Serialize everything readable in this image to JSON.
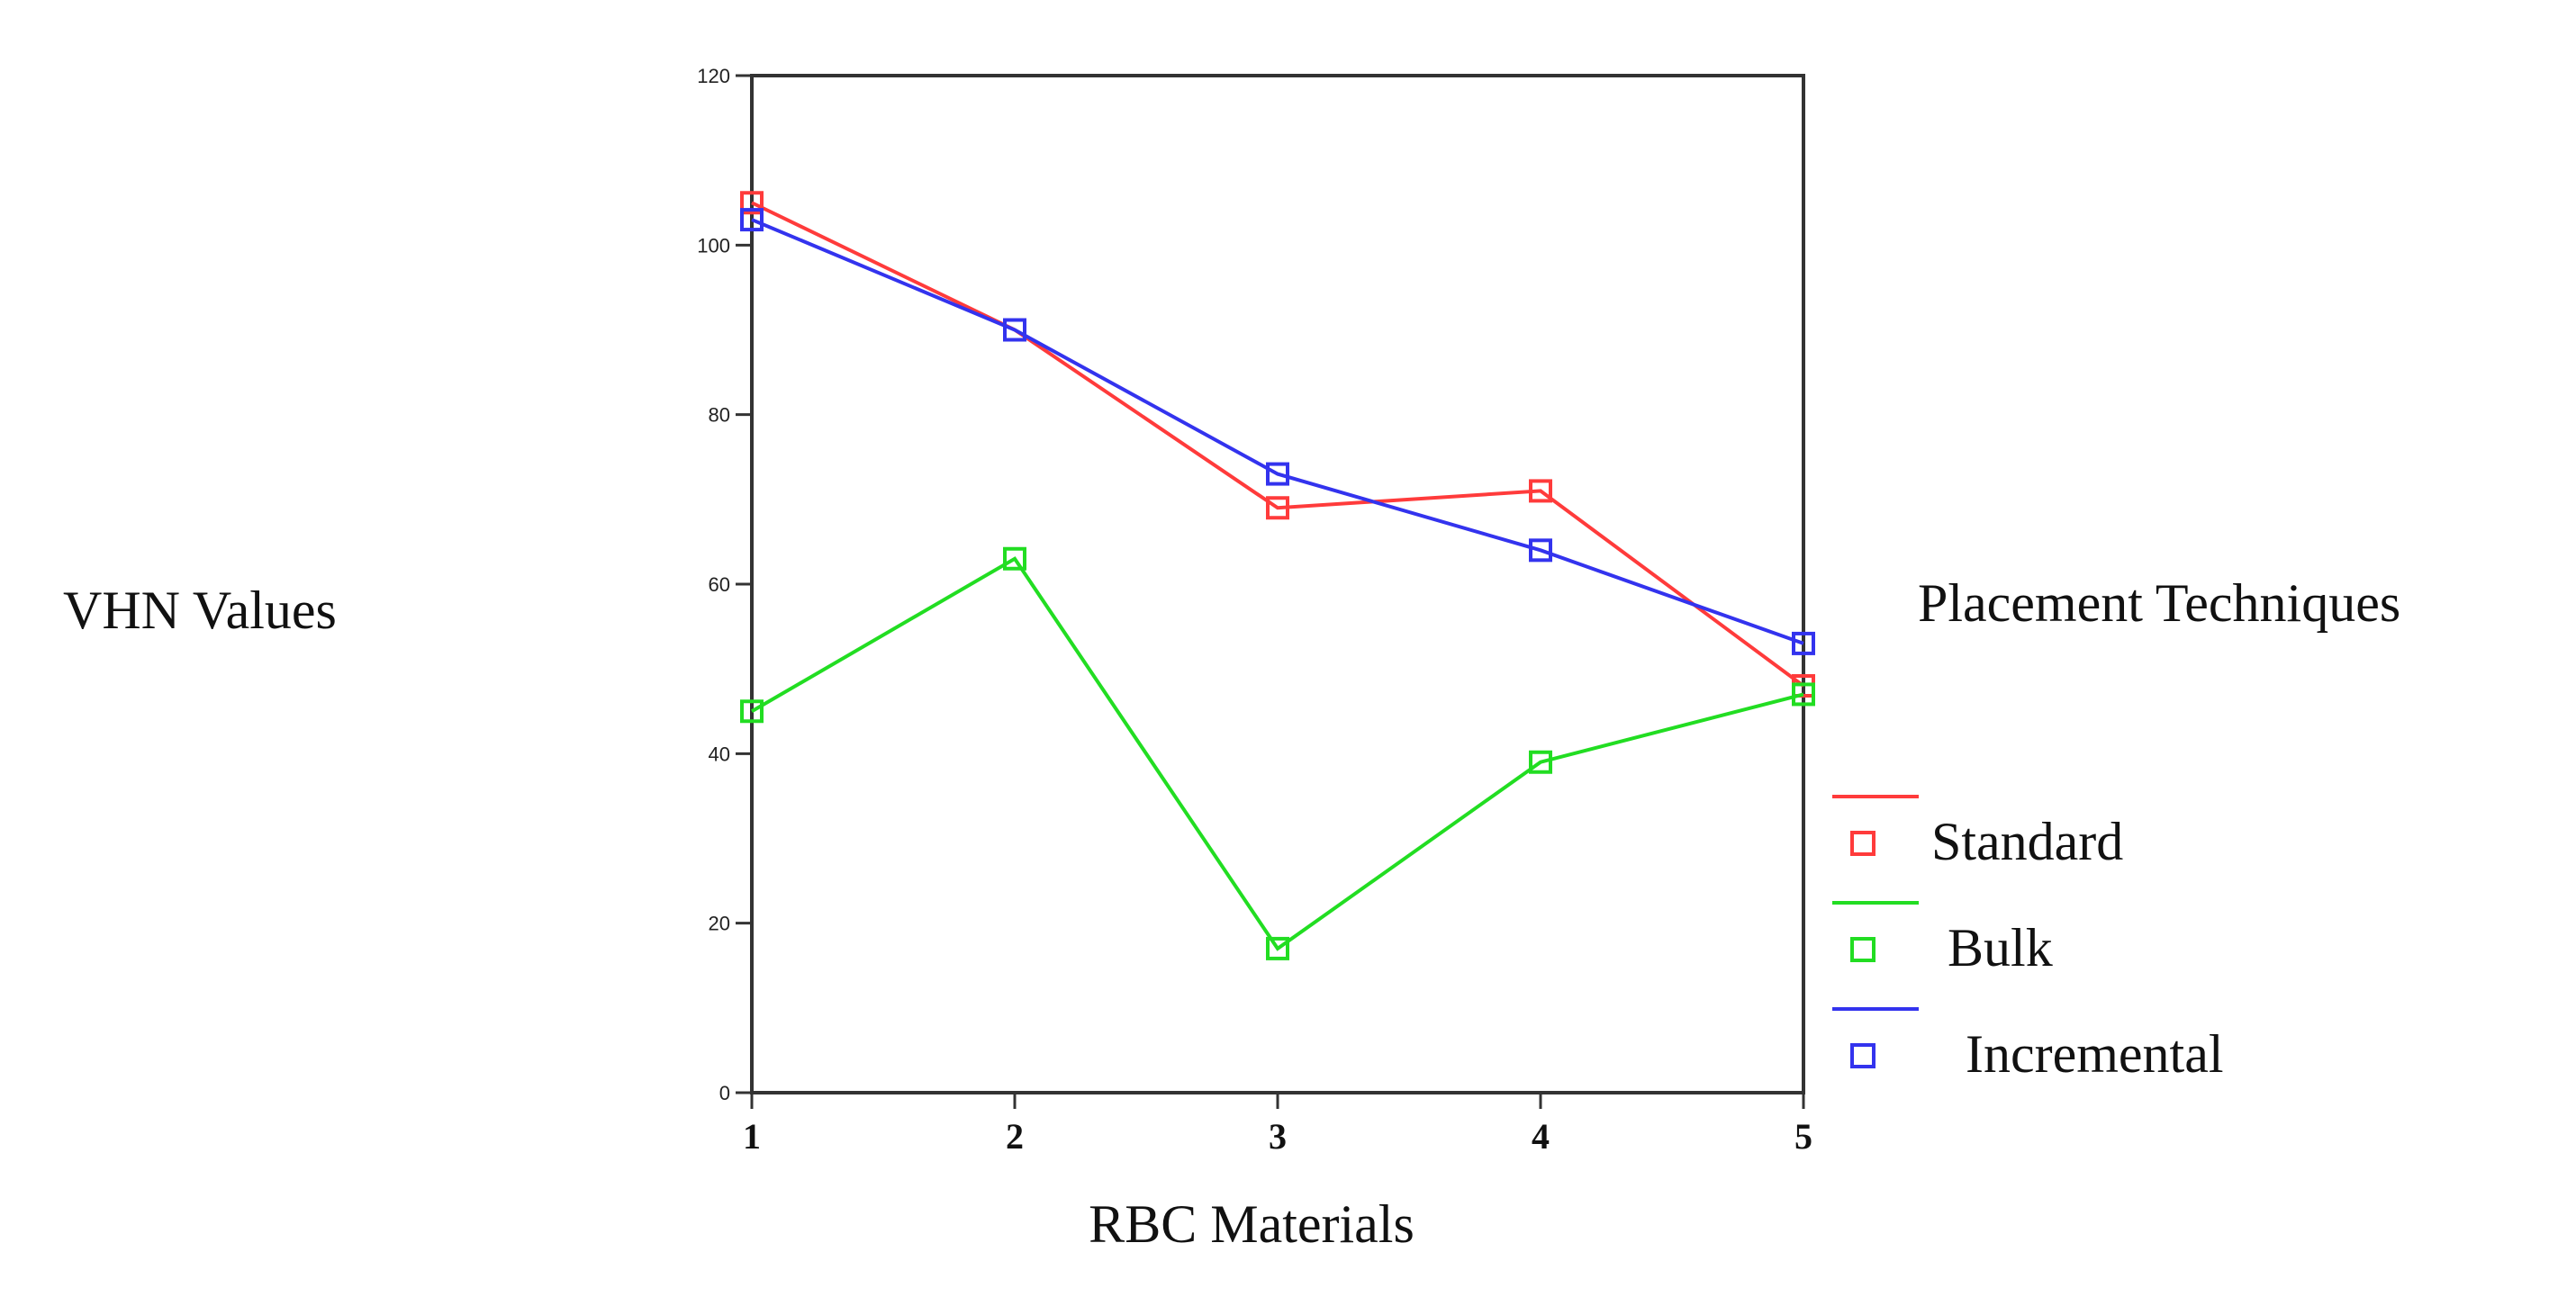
{
  "chart_data": {
    "type": "line",
    "title": "",
    "xlabel": "RBC Materials",
    "ylabel": "VHN Values",
    "categories": [
      "1",
      "2",
      "3",
      "4",
      "5"
    ],
    "ylim": [
      0,
      120
    ],
    "yticks": [
      0,
      20,
      40,
      60,
      80,
      100,
      120
    ],
    "grid": false,
    "legend_title": "Placement Techniques",
    "legend_position": "right",
    "marker": "square",
    "series": [
      {
        "name": "Standard",
        "color": "#ff3b3b",
        "values": [
          105,
          90,
          69,
          71,
          48
        ]
      },
      {
        "name": "Bulk",
        "color": "#22dd22",
        "values": [
          45,
          63,
          17,
          39,
          47
        ]
      },
      {
        "name": "Incremental",
        "color": "#3333ee",
        "values": [
          103,
          90,
          73,
          64,
          53
        ]
      }
    ]
  }
}
